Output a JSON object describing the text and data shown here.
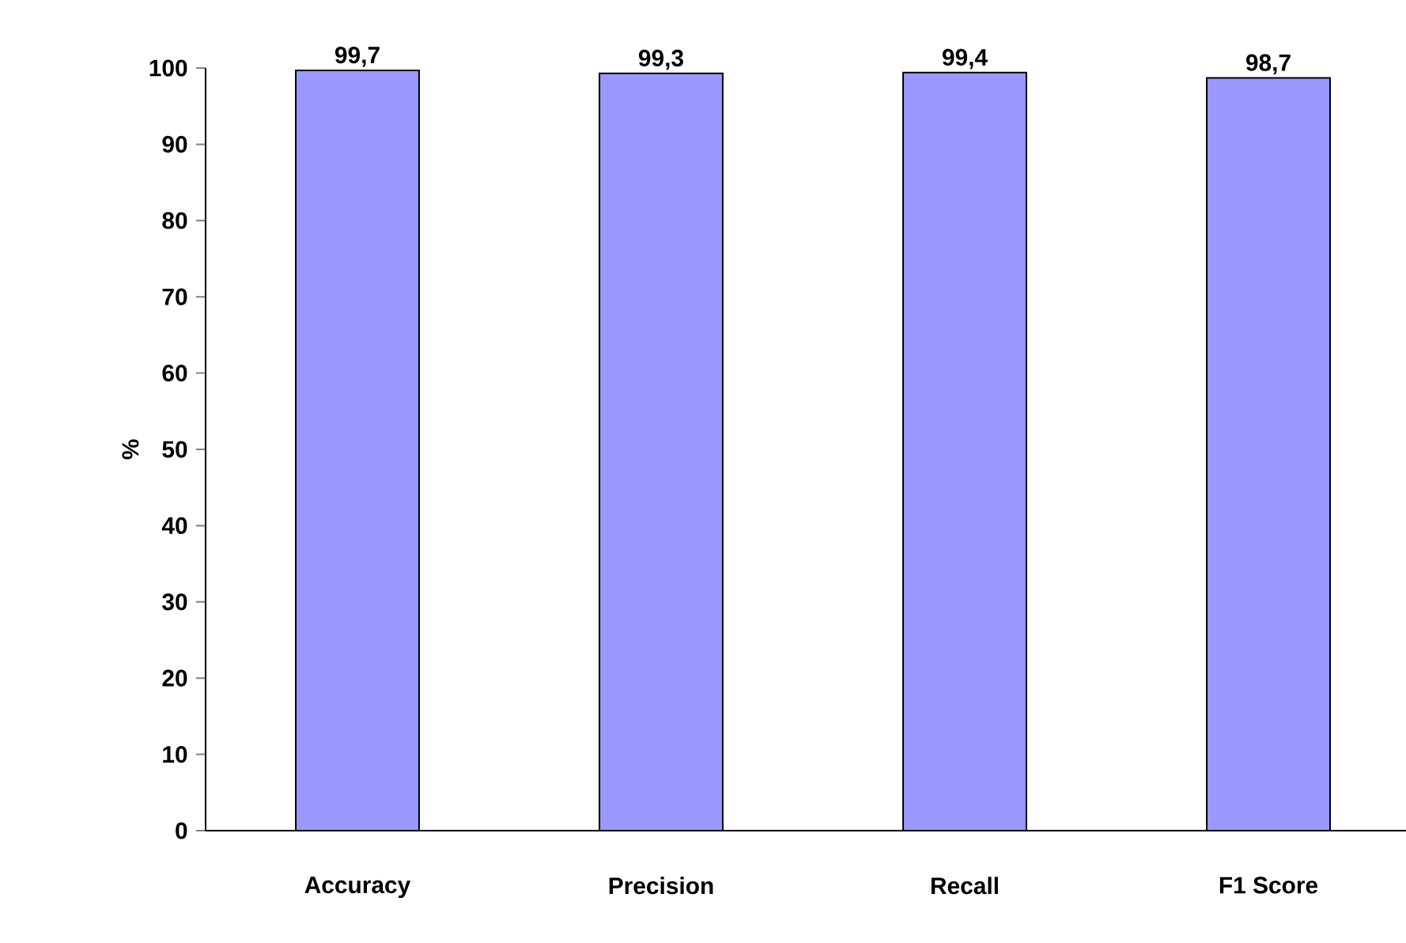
{
  "chart_data": {
    "type": "bar",
    "ylabel": "%",
    "categories": [
      "Accuracy",
      "Precision",
      "Recall",
      "F1 Score"
    ],
    "values": [
      99.7,
      99.3,
      99.4,
      98.7
    ],
    "value_labels": [
      "99,7",
      "99,3",
      "99,4",
      "98,7"
    ],
    "color": "#9999ff",
    "ylim": [
      0,
      100
    ],
    "yticks": [
      0,
      10,
      20,
      30,
      40,
      50,
      60,
      70,
      80,
      90,
      100
    ]
  }
}
